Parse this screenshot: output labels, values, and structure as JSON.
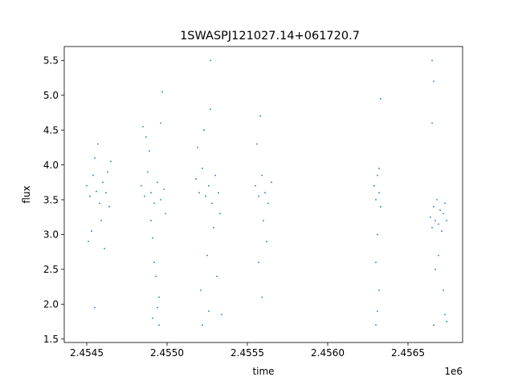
{
  "chart_data": {
    "type": "scatter",
    "title": "1SWASPJ121027.14+061720.7",
    "xlabel": "time",
    "ylabel": "flux",
    "x_offset_label": "1e6",
    "xlim": [
      2.45436,
      2.45684
    ],
    "ylim": [
      1.45,
      5.7
    ],
    "x_ticks": [
      2.4545,
      2.455,
      2.4555,
      2.456,
      2.4565
    ],
    "x_tick_labels": [
      "2.4545",
      "2.4550",
      "2.4555",
      "2.4560",
      "2.4565"
    ],
    "y_ticks": [
      1.5,
      2.0,
      2.5,
      3.0,
      3.5,
      4.0,
      4.5,
      5.0,
      5.5
    ],
    "y_tick_labels": [
      "1.5",
      "2.0",
      "2.5",
      "3.0",
      "3.5",
      "4.0",
      "4.5",
      "5.0",
      "5.5"
    ],
    "grid": false,
    "marker_color": "#1f77b4",
    "series": [
      {
        "points": [
          [
            2.4545,
            3.7
          ],
          [
            2.45452,
            3.55
          ],
          [
            2.45454,
            3.85
          ],
          [
            2.45456,
            3.62
          ],
          [
            2.45458,
            3.45
          ],
          [
            2.4546,
            3.75
          ],
          [
            2.45462,
            3.6
          ],
          [
            2.45455,
            4.1
          ],
          [
            2.45459,
            3.2
          ],
          [
            2.45461,
            2.8
          ],
          [
            2.45457,
            4.3
          ],
          [
            2.45453,
            3.05
          ],
          [
            2.45463,
            3.9
          ],
          [
            2.45451,
            2.9
          ],
          [
            2.45464,
            3.4
          ],
          [
            2.45455,
            1.95
          ],
          [
            2.45465,
            4.05
          ],
          [
            2.45484,
            3.7
          ],
          [
            2.45486,
            3.55
          ],
          [
            2.45488,
            3.9
          ],
          [
            2.4549,
            3.6
          ],
          [
            2.45492,
            3.45
          ],
          [
            2.45494,
            3.75
          ],
          [
            2.45496,
            3.5
          ],
          [
            2.45498,
            3.65
          ],
          [
            2.45489,
            4.2
          ],
          [
            2.45491,
            2.95
          ],
          [
            2.45493,
            2.4
          ],
          [
            2.45495,
            2.1
          ],
          [
            2.45491,
            1.8
          ],
          [
            2.45494,
            1.95
          ],
          [
            2.45492,
            2.6
          ],
          [
            2.45487,
            4.4
          ],
          [
            2.45496,
            4.6
          ],
          [
            2.45497,
            5.05
          ],
          [
            2.4549,
            3.2
          ],
          [
            2.45495,
            1.7
          ],
          [
            2.45485,
            4.55
          ],
          [
            2.45499,
            3.3
          ],
          [
            2.45518,
            3.8
          ],
          [
            2.4552,
            3.6
          ],
          [
            2.45522,
            3.95
          ],
          [
            2.45524,
            3.55
          ],
          [
            2.45526,
            3.7
          ],
          [
            2.45528,
            3.45
          ],
          [
            2.4553,
            3.85
          ],
          [
            2.45532,
            3.6
          ],
          [
            2.45519,
            4.25
          ],
          [
            2.45523,
            4.5
          ],
          [
            2.45527,
            4.8
          ],
          [
            2.45529,
            3.1
          ],
          [
            2.45525,
            2.7
          ],
          [
            2.45521,
            2.2
          ],
          [
            2.45526,
            1.9
          ],
          [
            2.45522,
            1.7
          ],
          [
            2.45531,
            2.4
          ],
          [
            2.45527,
            5.5
          ],
          [
            2.45533,
            3.3
          ],
          [
            2.45534,
            1.85
          ],
          [
            2.45555,
            3.7
          ],
          [
            2.45557,
            3.55
          ],
          [
            2.45559,
            3.85
          ],
          [
            2.45561,
            3.6
          ],
          [
            2.45563,
            3.45
          ],
          [
            2.45565,
            3.75
          ],
          [
            2.45556,
            4.3
          ],
          [
            2.45558,
            4.7
          ],
          [
            2.4556,
            3.2
          ],
          [
            2.45562,
            2.9
          ],
          [
            2.45557,
            2.6
          ],
          [
            2.45559,
            2.1
          ],
          [
            2.45629,
            3.7
          ],
          [
            2.4563,
            3.5
          ],
          [
            2.45631,
            3.85
          ],
          [
            2.45632,
            3.6
          ],
          [
            2.45633,
            3.4
          ],
          [
            2.45631,
            3.0
          ],
          [
            2.4563,
            2.6
          ],
          [
            2.45632,
            2.2
          ],
          [
            2.45631,
            1.9
          ],
          [
            2.4563,
            1.7
          ],
          [
            2.45633,
            4.95
          ],
          [
            2.45632,
            3.95
          ],
          [
            2.45664,
            3.25
          ],
          [
            2.45665,
            3.1
          ],
          [
            2.45666,
            3.4
          ],
          [
            2.45667,
            3.2
          ],
          [
            2.45668,
            3.5
          ],
          [
            2.45669,
            3.15
          ],
          [
            2.4567,
            3.35
          ],
          [
            2.45671,
            3.05
          ],
          [
            2.45672,
            3.3
          ],
          [
            2.45673,
            3.45
          ],
          [
            2.45674,
            3.2
          ],
          [
            2.45665,
            4.6
          ],
          [
            2.45666,
            5.2
          ],
          [
            2.45665,
            5.5
          ],
          [
            2.45667,
            2.5
          ],
          [
            2.45669,
            2.7
          ],
          [
            2.45672,
            2.2
          ],
          [
            2.45673,
            1.85
          ],
          [
            2.45674,
            1.75
          ],
          [
            2.45666,
            1.7
          ]
        ]
      }
    ]
  }
}
